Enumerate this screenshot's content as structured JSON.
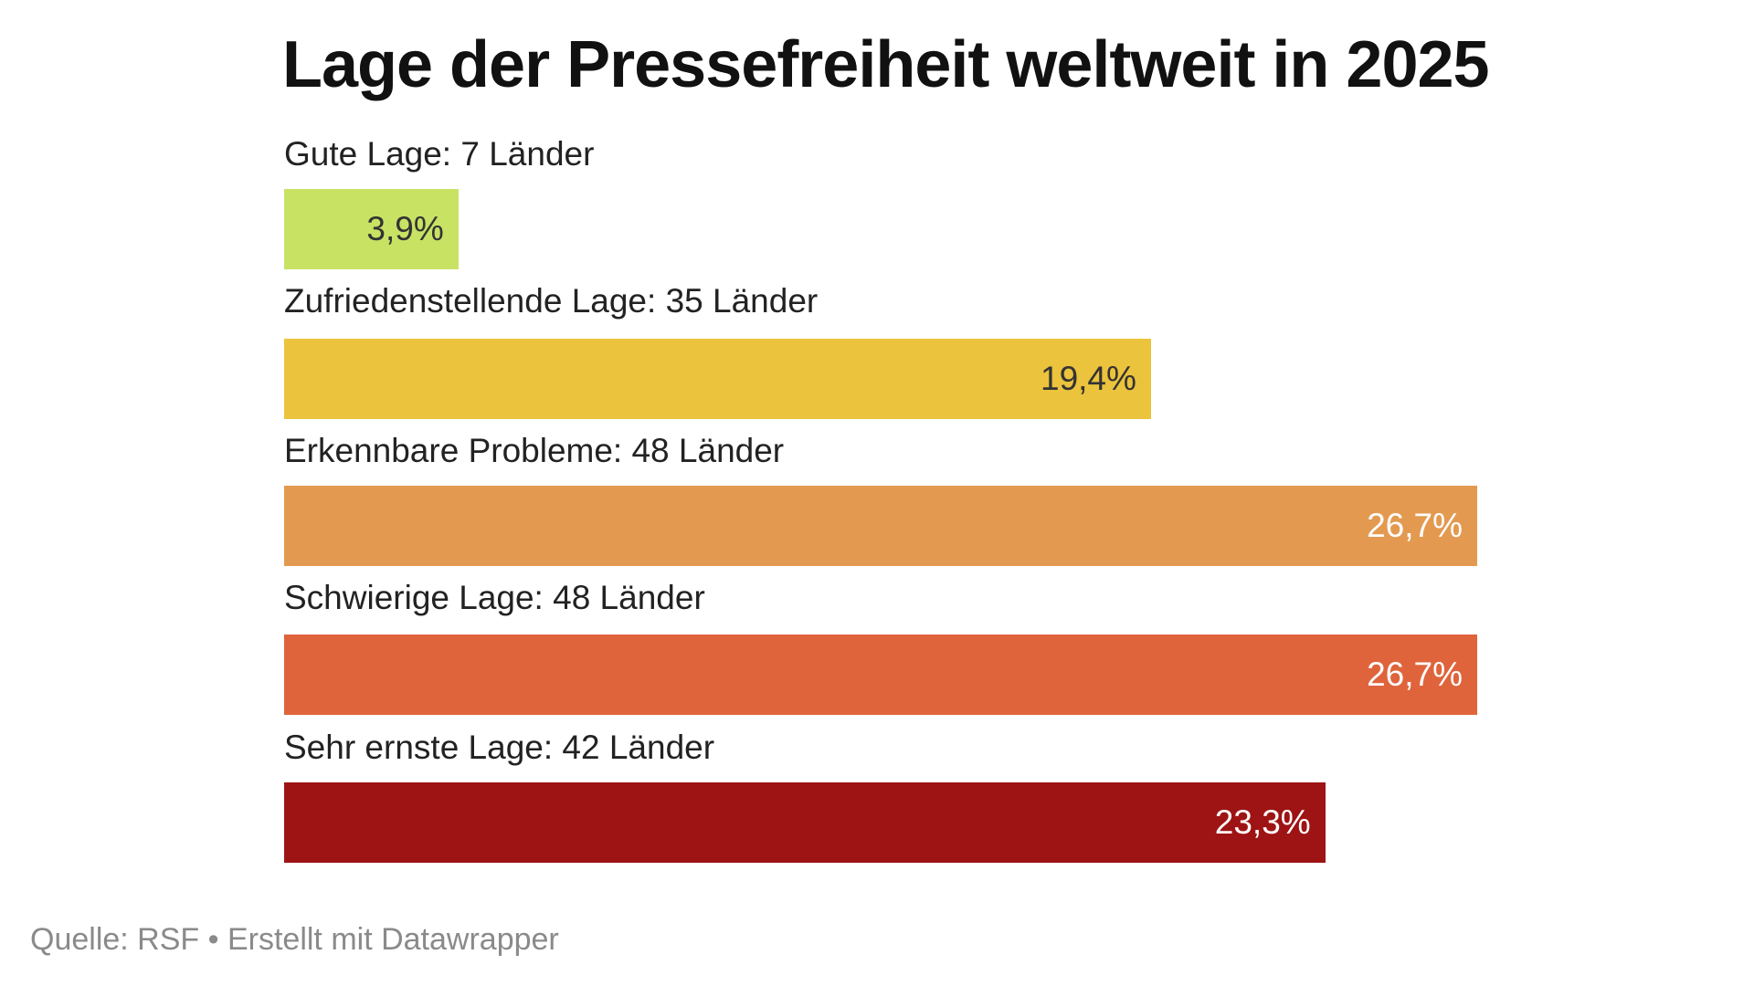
{
  "chart_data": {
    "type": "bar",
    "orientation": "horizontal",
    "title": "Lage der Pressefreiheit weltweit in 2025",
    "categories": [
      "Gute Lage: 7 Länder",
      "Zufriedenstellende Lage: 35 Länder",
      "Erkennbare Probleme: 48 Länder",
      "Schwierige Lage: 48 Länder",
      "Sehr ernste Lage: 42 Länder"
    ],
    "values": [
      3.9,
      19.4,
      26.7,
      26.7,
      23.3
    ],
    "value_labels": [
      "3,9%",
      "19,4%",
      "26,7%",
      "26,7%",
      "23,3%"
    ],
    "colors": [
      "#c8e264",
      "#ebc33c",
      "#e39a50",
      "#df643c",
      "#9e1414"
    ],
    "label_colors": [
      "#333333",
      "#333333",
      "#ffffff",
      "#ffffff",
      "#ffffff"
    ],
    "xlim": [
      0,
      26.7
    ],
    "grid": false
  },
  "footer": "Quelle: RSF • Erstellt mit Datawrapper"
}
